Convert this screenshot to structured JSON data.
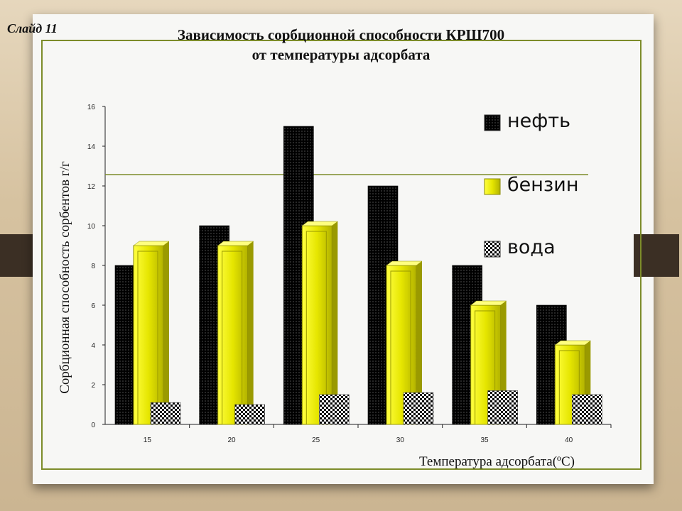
{
  "slide_label": "Слайд 11",
  "title_line1": "Зависимость сорбционной способности КРШ700",
  "title_line2": "от температуры адсорбата",
  "chart_data": {
    "type": "bar",
    "categories": [
      "15",
      "20",
      "25",
      "30",
      "35",
      "40"
    ],
    "series": [
      {
        "name": "нефть",
        "values": [
          8,
          10,
          15,
          12,
          8,
          6
        ],
        "color": "#000000"
      },
      {
        "name": "бензин",
        "values": [
          9,
          9,
          10,
          8,
          6,
          4
        ],
        "color": "#e6e600"
      },
      {
        "name": "вода",
        "values": [
          1.1,
          1.0,
          1.5,
          1.6,
          1.7,
          1.5
        ],
        "color": "#ffffff"
      }
    ],
    "xlabel": "Температура адсорбата(ºС)",
    "ylabel": "Сорбционная способность сорбентов г/г",
    "yticks": [
      0,
      2,
      4,
      6,
      8,
      10,
      12,
      14,
      16
    ],
    "ylim": [
      0,
      16
    ],
    "grid": false,
    "legend_position": "right"
  }
}
